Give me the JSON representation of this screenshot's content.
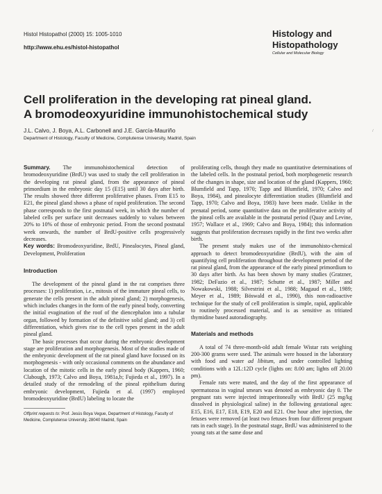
{
  "header": {
    "citation": "Histol Histopathol (2000) 15: 1005-1010",
    "url": "http://www.ehu.es/histol-histopathol",
    "journal_line1": "Histology and",
    "journal_line2": "Histopathology",
    "journal_subtitle": "Cellular and Molecular Biology"
  },
  "title_line1": "Cell proliferation in the developing rat pineal gland.",
  "title_line2": "A bromodeoxyuridine immunohistochemical study",
  "authors": "J.L. Calvo, J. Boya, A.L. Carbonell and J.E. García-Mauriño",
  "affiliation": "Department of Histology, Faculty of Medicine, Complutense University, Madrid, Spain",
  "summary": {
    "label": "Summary.",
    "text": " The immunohistochemical detection of bromodeoxyuridine (BrdU) was used to study the cell proliferation in the developing rat pineal gland, from the appearance of pineal primordium in the embryonic day 15 (E15) until 30 days after birth. The results showed three different proliferative phases. From E15 to E21, the pineal gland shows a phase of rapid proliferation. The second phase corresponds to the first postnatal week, in which the number of labeled cells per surface unit decreases suddenly to values between 20% to 10% of those of embryonic period. From the second postnatal week onwards, the number of BrdU-positive cells progressively decreases."
  },
  "keywords": {
    "label": "Key words:",
    "text": " Bromodeoxyuridine, BrdU, Pinealocytes, Pineal gland, Development, Proliferation"
  },
  "introduction": {
    "heading": "Introduction",
    "p1": "The development of the pineal gland in the rat comprises three processes: 1) proliferation, i.e., mitosis of the immature pineal cells, to generate the cells present in the adult pineal gland; 2) morphogenesis, which includes changes in the form of the early pineal body, converting the initial evagination of the roof of the diencephalon into a tubular organ, followed by formation of the definitive solid gland; and 3) cell differentiation, which gives rise to the cell types present in the adult pineal gland.",
    "p2": "The basic processes that occur during the embryonic development stage are proliferation and morphogenesis. Most of the studies made of the embryonic development of the rat pineal gland have focused on its morphogenesis - with only occasional comments on the abundance and location of the mitotic cells in the early pineal body (Kappers, 1960; Clabough, 1973; Calvo and Boya, 1981a,b; Fujieda et al., 1997). In a detailed study of the remodeling of the pineal epithelium during embryonic development, Fujieda et al. (1997) employed bromodeoxyuridine (BrdU) labeling to locate the"
  },
  "footnote": {
    "label": "Offprint requests to:",
    "text": " Prof. Jesús Boya Vegue, Department of Histology, Faculty of Medicine, Complutense University, 28040 Madrid, Spain"
  },
  "right_column": {
    "p1": "proliferating cells, though they made no quantitative determinations of the labeled cells. In the postnatal period, both morphogenetic research of the changes in shape, size and location of the gland (Kappers, 1960; Blumfield and Tapp, 1970; Tapp and Blumfield, 1970; Calvo and Boya, 1984), and pinealocyte differentiation studies (Blumfield and Tapp, 1970; Calvo and Boya, 1983) have been made. Unlike in the prenatal period, some quantitative data on the proliferative activity of the pineal cells are available in the postnatal period (Quay and Levine, 1957; Wallace et al., 1969; Calvo and Boya, 1984); this information suggests that proliferation decreases rapidly in the first two weeks after birth.",
    "p2": "The present study makes use of the immunohisto-chemical approach to detect bromodeoxyuridine (BrdU), with the aim of quantifying cell proliferation throughout the development period of the rat pineal gland, from the appearance of the early pineal primordium to 30 days after birth. As has been shown by many studies (Gratzner, 1982; DeFazio et al., 1987; Schutte et al., 1987; Miller and Nowakowski, 1988; Silvestrini et al., 1988; Magaud et al., 1989; Meyer et al., 1989; Böswald et al., 1990), this non-radioactive technique for the study of cell proliferation is simple, rapid, applicable to routinely processed material, and is as sensitive as tritiated thymidine based autoradiography.",
    "methods_heading": "Materials and methods",
    "m1_a": "A total of 74 three-month-old adult female Wistar rats weighing 200-300 grams were used. The animals were housed in the laboratory with food and water ",
    "m1_italic": "ad libitum",
    "m1_b": ", and under controlled lighting conditions with a 12L:12D cycle (lights on: 8.00 am; lights off 20.00 pm).",
    "m2": "Female rats were mated, and the day of the first appearance of spermatozoa in vaginal smears was denoted as embryonic day 0. The pregnant rats were injected intraperitoneally with BrdU (25 mg/kg dissolved in physiological saline) in the following gestational ages: E15, E16, E17, E18, E19, E20 and E21. One hour after injection, the fetuses were removed (at least two fetuses from four different pregnant rats in each stage). In the postnatal stage, BrdU was administered to the young rats at the same dose and"
  },
  "margin_mark": "/"
}
